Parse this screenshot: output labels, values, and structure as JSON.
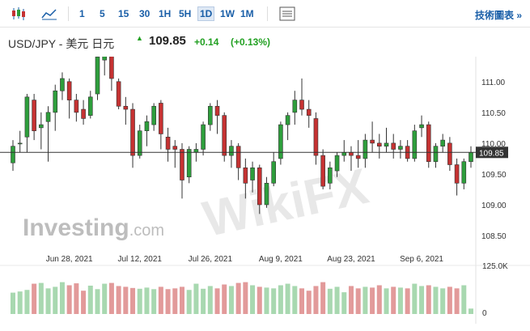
{
  "toolbar": {
    "candle_icon": "candlestick-icon",
    "area_icon": "area-chart-icon",
    "timeframes": [
      "1",
      "5",
      "15",
      "30",
      "1H",
      "5H",
      "1D",
      "1W",
      "1M"
    ],
    "active": "1D",
    "table_icon": "table-icon",
    "tech_link": "技術圖表 »"
  },
  "header": {
    "pair": "USD/JPY - 美元 日元",
    "price": "109.85",
    "change": "+0.14",
    "change_pct": "(+0.13%)",
    "up_color": "#22a022"
  },
  "watermark": {
    "brand": "Investing",
    "brand_suffix": ".com",
    "wikifx": "WikiFX"
  },
  "chart_data": {
    "type": "candlestick",
    "ylim": [
      108.25,
      111.3
    ],
    "yticks": [
      "111.00",
      "110.50",
      "110.00",
      "109.50",
      "109.00",
      "108.50"
    ],
    "ytick_values": [
      111.0,
      110.5,
      110.0,
      109.5,
      109.0,
      108.5
    ],
    "current_price": 109.85,
    "current_label": "109.85",
    "x_labels": [
      "Jun 28, 2021",
      "Jul 12, 2021",
      "Jul 26, 2021",
      "Aug 9, 2021",
      "Aug 23, 2021",
      "Sep 6, 2021"
    ],
    "x_label_bars": [
      8,
      18,
      28,
      38,
      48,
      58
    ],
    "up_color": "#2e9e3c",
    "down_color": "#c53232",
    "candles": [
      [
        109.68,
        109.95,
        109.55,
        110.05
      ],
      [
        110.0,
        110.0,
        109.85,
        110.2
      ],
      [
        110.1,
        110.75,
        109.85,
        110.8
      ],
      [
        110.7,
        110.2,
        110.05,
        110.8
      ],
      [
        110.25,
        110.3,
        109.9,
        110.5
      ],
      [
        110.35,
        110.5,
        109.7,
        110.6
      ],
      [
        110.5,
        110.85,
        110.2,
        110.95
      ],
      [
        110.85,
        111.05,
        110.7,
        111.15
      ],
      [
        111.0,
        110.7,
        110.4,
        111.05
      ],
      [
        110.7,
        110.5,
        110.35,
        110.8
      ],
      [
        110.55,
        110.4,
        110.3,
        110.7
      ],
      [
        110.45,
        110.75,
        110.4,
        110.85
      ],
      [
        110.8,
        111.4,
        110.7,
        111.5
      ],
      [
        111.35,
        111.55,
        111.1,
        111.75
      ],
      [
        111.55,
        111.05,
        110.85,
        111.65
      ],
      [
        111.0,
        110.6,
        110.55,
        111.05
      ],
      [
        110.6,
        110.55,
        110.3,
        110.75
      ],
      [
        110.55,
        109.8,
        109.6,
        110.65
      ],
      [
        109.8,
        110.2,
        109.75,
        110.3
      ],
      [
        110.2,
        110.35,
        109.95,
        110.45
      ],
      [
        110.3,
        110.6,
        110.2,
        110.65
      ],
      [
        110.65,
        110.15,
        109.9,
        110.7
      ],
      [
        110.1,
        109.9,
        109.7,
        110.25
      ],
      [
        109.95,
        109.9,
        109.6,
        110.05
      ],
      [
        109.9,
        109.4,
        109.1,
        110.0
      ],
      [
        109.45,
        109.9,
        109.35,
        109.95
      ],
      [
        109.85,
        109.9,
        109.7,
        110.0
      ],
      [
        109.9,
        110.3,
        109.8,
        110.35
      ],
      [
        110.3,
        110.6,
        110.2,
        110.65
      ],
      [
        110.6,
        110.45,
        110.15,
        110.7
      ],
      [
        110.45,
        109.8,
        109.7,
        110.5
      ],
      [
        109.8,
        109.95,
        109.6,
        110.05
      ],
      [
        109.95,
        109.6,
        109.4,
        110.0
      ],
      [
        109.6,
        109.35,
        109.1,
        109.75
      ],
      [
        109.4,
        109.6,
        109.2,
        109.7
      ],
      [
        109.6,
        109.0,
        108.85,
        109.65
      ],
      [
        109.0,
        109.35,
        108.95,
        109.45
      ],
      [
        109.35,
        109.7,
        109.3,
        109.85
      ],
      [
        109.75,
        110.3,
        109.65,
        110.35
      ],
      [
        110.3,
        110.45,
        110.05,
        110.5
      ],
      [
        110.5,
        110.7,
        110.3,
        110.85
      ],
      [
        110.7,
        110.55,
        110.45,
        111.05
      ],
      [
        110.55,
        110.45,
        110.25,
        110.7
      ],
      [
        110.4,
        109.8,
        109.65,
        110.5
      ],
      [
        109.8,
        109.3,
        109.25,
        109.9
      ],
      [
        109.35,
        109.6,
        109.25,
        109.7
      ],
      [
        109.55,
        109.8,
        109.45,
        109.85
      ],
      [
        109.8,
        109.85,
        109.7,
        110.05
      ],
      [
        109.85,
        109.8,
        109.55,
        109.95
      ],
      [
        109.8,
        109.75,
        109.6,
        110.05
      ],
      [
        109.75,
        110.05,
        109.6,
        110.15
      ],
      [
        110.05,
        110.0,
        109.85,
        110.35
      ],
      [
        110.0,
        109.95,
        109.75,
        110.15
      ],
      [
        109.95,
        110.0,
        109.85,
        110.25
      ],
      [
        110.0,
        109.9,
        109.75,
        110.15
      ],
      [
        109.9,
        109.95,
        109.75,
        110.05
      ],
      [
        109.95,
        109.75,
        109.7,
        110.05
      ],
      [
        109.75,
        110.2,
        109.7,
        110.3
      ],
      [
        110.25,
        110.3,
        110.1,
        110.45
      ],
      [
        110.3,
        109.7,
        109.6,
        110.35
      ],
      [
        109.7,
        109.95,
        109.6,
        110.0
      ],
      [
        109.95,
        110.05,
        109.85,
        110.15
      ],
      [
        110.0,
        109.65,
        109.55,
        110.1
      ],
      [
        109.65,
        109.35,
        109.15,
        109.75
      ],
      [
        109.35,
        109.7,
        109.25,
        109.75
      ],
      [
        109.7,
        109.85,
        109.6,
        109.95
      ]
    ],
    "volume_tick": "125.0K",
    "volume_zero": "0",
    "volume_max": 125,
    "volumes": [
      55,
      58,
      62,
      78,
      80,
      66,
      70,
      82,
      74,
      79,
      60,
      73,
      64,
      78,
      80,
      72,
      70,
      67,
      65,
      68,
      64,
      70,
      64,
      66,
      70,
      62,
      78,
      65,
      72,
      66,
      76,
      72,
      80,
      82,
      74,
      70,
      68,
      66,
      74,
      78,
      72,
      66,
      60,
      72,
      82,
      65,
      70,
      56,
      72,
      66,
      70,
      68,
      74,
      66,
      70,
      68,
      66,
      78,
      72,
      74,
      70,
      66,
      70,
      66,
      74,
      14
    ]
  }
}
